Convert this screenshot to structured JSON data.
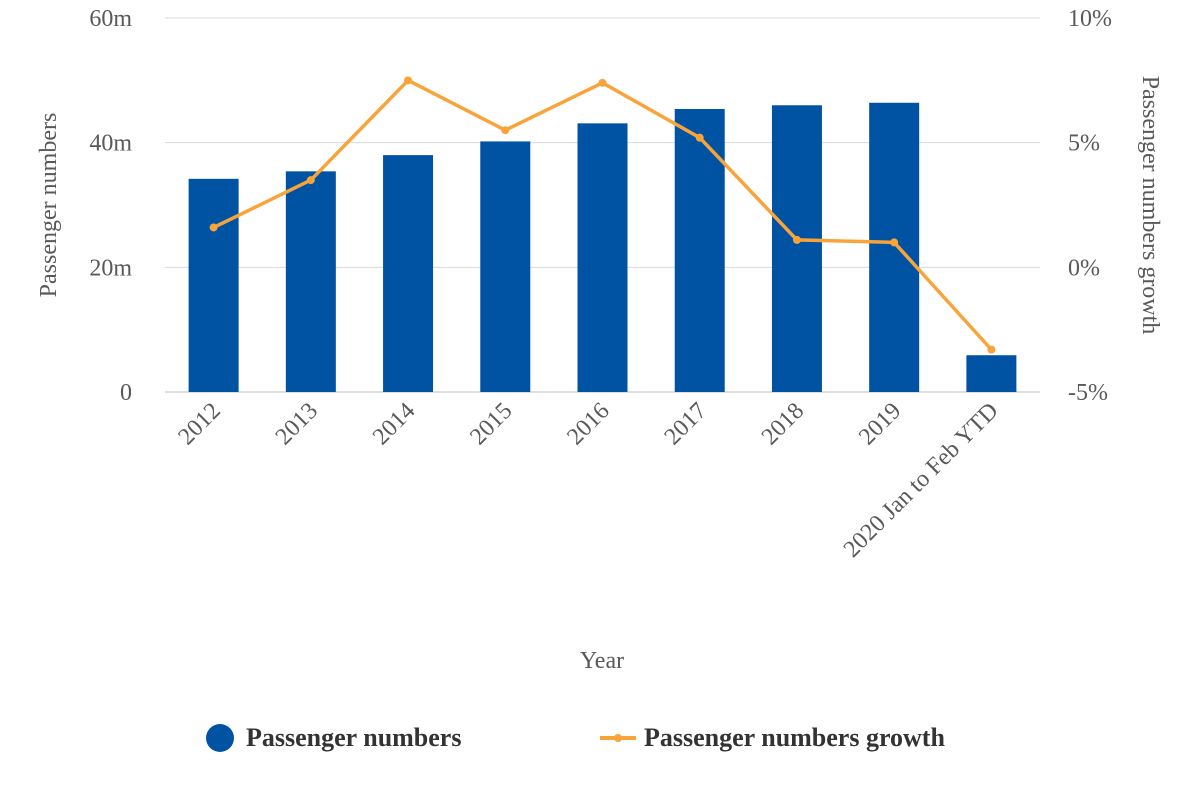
{
  "chart_data": {
    "type": "bar",
    "categories": [
      "2012",
      "2013",
      "2014",
      "2015",
      "2016",
      "2017",
      "2018",
      "2019",
      "2020 Jan to Feb YTD"
    ],
    "series": [
      {
        "name": "Passenger numbers",
        "type": "bar",
        "axis": "left",
        "color": "#0053A3",
        "values": [
          34.2,
          35.4,
          38.0,
          40.2,
          43.1,
          45.4,
          46.0,
          46.4,
          5.9
        ]
      },
      {
        "name": "Passenger numbers growth",
        "type": "line",
        "axis": "right",
        "color": "#F9A43A",
        "values": [
          1.6,
          3.5,
          7.5,
          5.5,
          7.4,
          5.2,
          1.1,
          1.0,
          -3.3
        ]
      }
    ],
    "xlabel": "Year",
    "ylabel": "Passenger numbers",
    "y2label": "Passenger numbers growth",
    "ylim": [
      0,
      60
    ],
    "y2lim": [
      -5,
      10
    ],
    "yticks": [
      "0",
      "20m",
      "40m",
      "60m"
    ],
    "y2ticks": [
      "-5%",
      "0%",
      "5%",
      "10%"
    ],
    "grid": true,
    "legend_position": "bottom"
  },
  "legend": {
    "bar_label": "Passenger numbers",
    "line_label": "Passenger numbers growth"
  }
}
